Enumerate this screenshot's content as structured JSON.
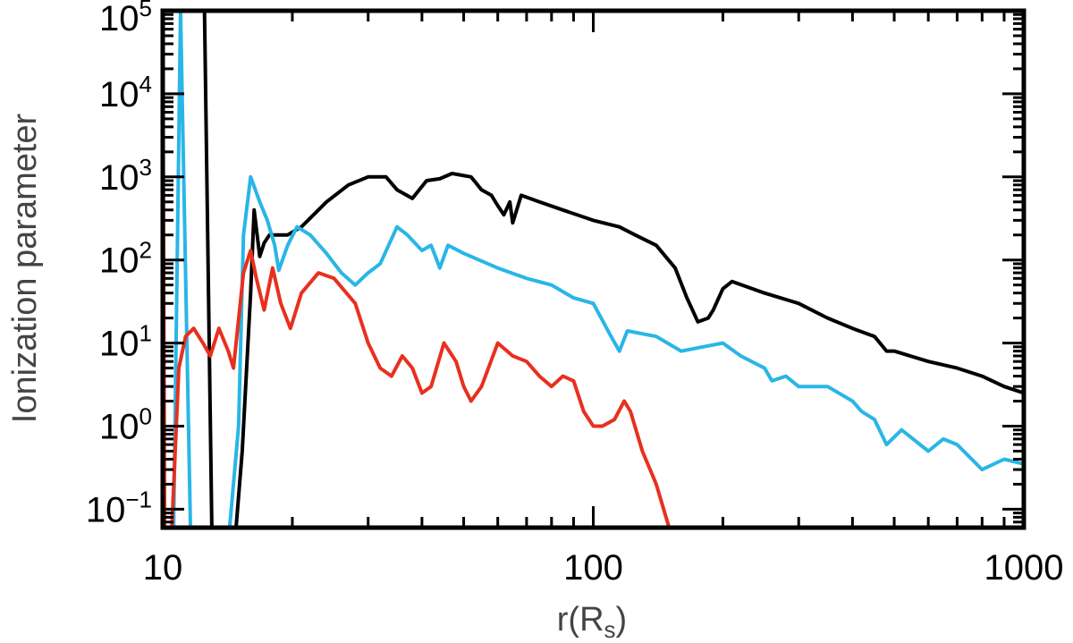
{
  "chart_data": {
    "type": "line",
    "xlabel_main": "r(R",
    "xlabel_sub": "s",
    "xlabel_close": ")",
    "ylabel": "Ionization parameter",
    "xscale": "log",
    "yscale": "log",
    "xlim": [
      10,
      1000
    ],
    "ylim": [
      0.06,
      100000
    ],
    "grid": false,
    "x_ticks": [
      {
        "value": 10,
        "label": "10"
      },
      {
        "value": 100,
        "label": "100"
      },
      {
        "value": 1000,
        "label": "1000"
      }
    ],
    "y_ticks": [
      {
        "value": 0.1,
        "base": "10",
        "exp": "−1"
      },
      {
        "value": 1,
        "base": "10",
        "exp": "0"
      },
      {
        "value": 10,
        "base": "10",
        "exp": "1"
      },
      {
        "value": 100,
        "base": "10",
        "exp": "2"
      },
      {
        "value": 1000,
        "base": "10",
        "exp": "3"
      },
      {
        "value": 10000,
        "base": "10",
        "exp": "4"
      },
      {
        "value": 100000,
        "base": "10",
        "exp": "5"
      }
    ],
    "series": [
      {
        "color": "#000000",
        "points": [
          [
            12.5,
            100000
          ],
          [
            13.0,
            0.06
          ],
          [
            14.8,
            0.06
          ],
          [
            15.3,
            0.5
          ],
          [
            16.0,
            40
          ],
          [
            16.3,
            400
          ],
          [
            16.8,
            110
          ],
          [
            17.2,
            160
          ],
          [
            17.7,
            200
          ],
          [
            19.5,
            200
          ],
          [
            21,
            250
          ],
          [
            24,
            500
          ],
          [
            27,
            800
          ],
          [
            30,
            1000
          ],
          [
            33,
            1000
          ],
          [
            35,
            700
          ],
          [
            38,
            550
          ],
          [
            41,
            900
          ],
          [
            44,
            950
          ],
          [
            47,
            1100
          ],
          [
            52,
            1000
          ],
          [
            55,
            700
          ],
          [
            58,
            600
          ],
          [
            60,
            450
          ],
          [
            62,
            350
          ],
          [
            64,
            500
          ],
          [
            65,
            280
          ],
          [
            68,
            600
          ],
          [
            75,
            500
          ],
          [
            85,
            400
          ],
          [
            100,
            300
          ],
          [
            115,
            250
          ],
          [
            125,
            200
          ],
          [
            140,
            150
          ],
          [
            155,
            80
          ],
          [
            165,
            35
          ],
          [
            175,
            18
          ],
          [
            185,
            20
          ],
          [
            190,
            25
          ],
          [
            200,
            45
          ],
          [
            210,
            55
          ],
          [
            250,
            40
          ],
          [
            300,
            30
          ],
          [
            350,
            20
          ],
          [
            400,
            15
          ],
          [
            450,
            12
          ],
          [
            480,
            8
          ],
          [
            500,
            8
          ],
          [
            600,
            6
          ],
          [
            700,
            5
          ],
          [
            800,
            4
          ],
          [
            900,
            3
          ],
          [
            1000,
            2.5
          ]
        ]
      },
      {
        "color": "#29b6e6",
        "points": [
          [
            10.6,
            0.06
          ],
          [
            11.0,
            100000
          ],
          [
            11.6,
            0.06
          ],
          [
            14.3,
            0.06
          ],
          [
            15.0,
            1
          ],
          [
            15.4,
            200
          ],
          [
            16.0,
            1000
          ],
          [
            16.8,
            500
          ],
          [
            17.5,
            300
          ],
          [
            18.2,
            150
          ],
          [
            18.6,
            75
          ],
          [
            19.5,
            150
          ],
          [
            20.5,
            250
          ],
          [
            22,
            200
          ],
          [
            24,
            120
          ],
          [
            26,
            70
          ],
          [
            28,
            50
          ],
          [
            30,
            70
          ],
          [
            32,
            90
          ],
          [
            35,
            250
          ],
          [
            37,
            200
          ],
          [
            40,
            130
          ],
          [
            42,
            150
          ],
          [
            43,
            110
          ],
          [
            44,
            80
          ],
          [
            46,
            150
          ],
          [
            50,
            120
          ],
          [
            60,
            80
          ],
          [
            70,
            60
          ],
          [
            80,
            50
          ],
          [
            90,
            35
          ],
          [
            100,
            30
          ],
          [
            110,
            12
          ],
          [
            115,
            8
          ],
          [
            120,
            14
          ],
          [
            140,
            12
          ],
          [
            160,
            8
          ],
          [
            180,
            9
          ],
          [
            200,
            10
          ],
          [
            220,
            7
          ],
          [
            250,
            5
          ],
          [
            260,
            3.5
          ],
          [
            280,
            4
          ],
          [
            300,
            3
          ],
          [
            350,
            3
          ],
          [
            400,
            2
          ],
          [
            420,
            1.5
          ],
          [
            450,
            1.2
          ],
          [
            480,
            0.6
          ],
          [
            520,
            0.9
          ],
          [
            600,
            0.5
          ],
          [
            650,
            0.7
          ],
          [
            700,
            0.6
          ],
          [
            800,
            0.3
          ],
          [
            900,
            0.4
          ],
          [
            1000,
            0.35
          ]
        ]
      },
      {
        "color": "#e8301e",
        "points": [
          [
            10.0,
            100000
          ],
          [
            10.1,
            0.06
          ],
          [
            10.5,
            0.06
          ],
          [
            10.9,
            5
          ],
          [
            11.3,
            12
          ],
          [
            11.8,
            15
          ],
          [
            12.4,
            10
          ],
          [
            12.9,
            7
          ],
          [
            13.5,
            15
          ],
          [
            14.2,
            8
          ],
          [
            14.6,
            5
          ],
          [
            15.4,
            70
          ],
          [
            16.0,
            130
          ],
          [
            16.5,
            60
          ],
          [
            17.2,
            25
          ],
          [
            18.0,
            80
          ],
          [
            18.8,
            30
          ],
          [
            19.8,
            15
          ],
          [
            21,
            40
          ],
          [
            23,
            70
          ],
          [
            25,
            60
          ],
          [
            28,
            30
          ],
          [
            30,
            10
          ],
          [
            32,
            5
          ],
          [
            34,
            4
          ],
          [
            36,
            7
          ],
          [
            38,
            5
          ],
          [
            40,
            2.5
          ],
          [
            42,
            3
          ],
          [
            45,
            10
          ],
          [
            48,
            6
          ],
          [
            50,
            3
          ],
          [
            52,
            2
          ],
          [
            55,
            3
          ],
          [
            60,
            10
          ],
          [
            65,
            7
          ],
          [
            70,
            6
          ],
          [
            75,
            4
          ],
          [
            80,
            3
          ],
          [
            85,
            4
          ],
          [
            90,
            3.5
          ],
          [
            95,
            1.5
          ],
          [
            100,
            1
          ],
          [
            105,
            1
          ],
          [
            112,
            1.2
          ],
          [
            118,
            2
          ],
          [
            122,
            1.5
          ],
          [
            130,
            0.5
          ],
          [
            140,
            0.2
          ],
          [
            150,
            0.06
          ]
        ]
      }
    ]
  }
}
